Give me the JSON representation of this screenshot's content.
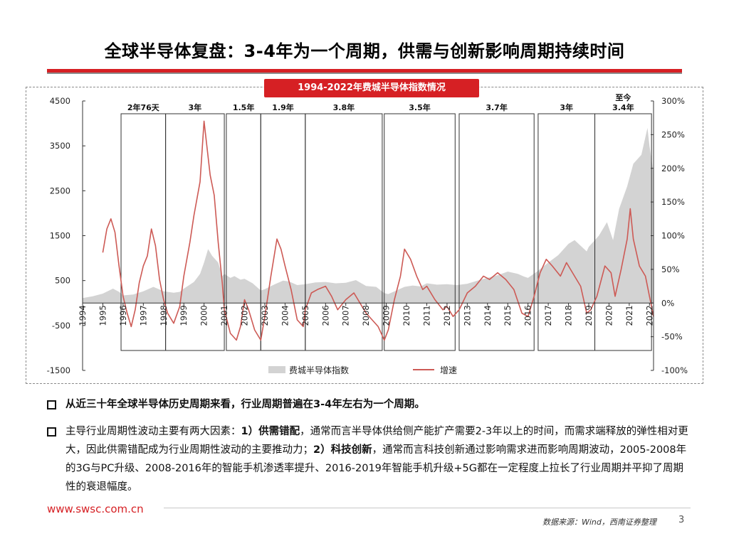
{
  "title": "全球半导体复盘：3-4年为一个周期，供需与创新影响周期持续时间",
  "colors": {
    "accent": "#d62024",
    "area": "#d3d3d3",
    "line": "#cd5a55",
    "box": "#333333"
  },
  "chart_data": {
    "type": "area-line",
    "title": "1994-2022年费城半导体指数情况",
    "x_range": [
      1994.0,
      2022.2
    ],
    "y_left": {
      "ticks": [
        4500,
        3500,
        2500,
        1500,
        500,
        -500,
        -1500
      ],
      "range": [
        -1500,
        4500
      ]
    },
    "y_right": {
      "ticks": [
        "300%",
        "250%",
        "200%",
        "150%",
        "100%",
        "50%",
        "0%",
        "-50%",
        "-100%"
      ],
      "range": [
        -100,
        300
      ]
    },
    "x_ticks": [
      "1994",
      "1995",
      "1996",
      "1997",
      "1998",
      "1999",
      "2000",
      "2001",
      "2002",
      "2003",
      "2004",
      "2005",
      "2006",
      "2007",
      "2008",
      "2009",
      "2010",
      "2011",
      "2012",
      "2013",
      "2014",
      "2015",
      "2016",
      "2017",
      "2018",
      "2019",
      "2020",
      "2021",
      "2022"
    ],
    "cycles": [
      {
        "label": "2年76天",
        "start": 1995.9,
        "end": 1998.1
      },
      {
        "label": "3年",
        "start": 1998.1,
        "end": 2001.0
      },
      {
        "label": "1.5年",
        "start": 2001.1,
        "end": 2002.8
      },
      {
        "label": "1.9年",
        "start": 2002.8,
        "end": 2005.0
      },
      {
        "label": "3.8年",
        "start": 2005.0,
        "end": 2008.8
      },
      {
        "label": "3.5年",
        "start": 2008.9,
        "end": 2012.4
      },
      {
        "label": "3.7年",
        "start": 2012.6,
        "end": 2016.3
      },
      {
        "label": "3年",
        "start": 2016.5,
        "end": 2019.3
      },
      {
        "label_top": "至今",
        "label": "3.4年",
        "start": 2019.3,
        "end": 2022.1
      }
    ],
    "series": [
      {
        "name": "费城半导体指数",
        "type": "area",
        "axis": "left",
        "points": [
          [
            1994.0,
            110
          ],
          [
            1994.5,
            150
          ],
          [
            1995.0,
            210
          ],
          [
            1995.5,
            320
          ],
          [
            1995.8,
            250
          ],
          [
            1996.0,
            170
          ],
          [
            1996.5,
            190
          ],
          [
            1997.0,
            260
          ],
          [
            1997.5,
            360
          ],
          [
            1997.8,
            300
          ],
          [
            1998.0,
            260
          ],
          [
            1998.5,
            230
          ],
          [
            1998.8,
            250
          ],
          [
            1999.0,
            320
          ],
          [
            1999.5,
            470
          ],
          [
            1999.8,
            650
          ],
          [
            2000.0,
            900
          ],
          [
            2000.2,
            1200
          ],
          [
            2000.4,
            1050
          ],
          [
            2000.7,
            900
          ],
          [
            2000.9,
            600
          ],
          [
            2001.0,
            650
          ],
          [
            2001.3,
            560
          ],
          [
            2001.5,
            600
          ],
          [
            2001.8,
            520
          ],
          [
            2002.0,
            540
          ],
          [
            2002.4,
            440
          ],
          [
            2002.8,
            280
          ],
          [
            2003.0,
            310
          ],
          [
            2003.5,
            420
          ],
          [
            2003.9,
            500
          ],
          [
            2004.2,
            480
          ],
          [
            2004.6,
            400
          ],
          [
            2005.0,
            420
          ],
          [
            2005.5,
            460
          ],
          [
            2006.0,
            470
          ],
          [
            2006.5,
            440
          ],
          [
            2007.0,
            450
          ],
          [
            2007.5,
            510
          ],
          [
            2008.0,
            380
          ],
          [
            2008.5,
            360
          ],
          [
            2008.9,
            220
          ],
          [
            2009.1,
            200
          ],
          [
            2009.5,
            280
          ],
          [
            2009.9,
            360
          ],
          [
            2010.3,
            390
          ],
          [
            2010.7,
            370
          ],
          [
            2011.0,
            440
          ],
          [
            2011.5,
            410
          ],
          [
            2012.0,
            420
          ],
          [
            2012.5,
            400
          ],
          [
            2013.0,
            430
          ],
          [
            2013.5,
            500
          ],
          [
            2014.0,
            560
          ],
          [
            2014.5,
            620
          ],
          [
            2015.0,
            700
          ],
          [
            2015.5,
            650
          ],
          [
            2015.8,
            590
          ],
          [
            2016.0,
            560
          ],
          [
            2016.5,
            720
          ],
          [
            2017.0,
            900
          ],
          [
            2017.5,
            1070
          ],
          [
            2018.0,
            1320
          ],
          [
            2018.3,
            1400
          ],
          [
            2018.9,
            1150
          ],
          [
            2019.0,
            1250
          ],
          [
            2019.5,
            1500
          ],
          [
            2019.9,
            1800
          ],
          [
            2020.2,
            1400
          ],
          [
            2020.5,
            2100
          ],
          [
            2020.9,
            2600
          ],
          [
            2021.2,
            3100
          ],
          [
            2021.6,
            3300
          ],
          [
            2021.9,
            3900
          ],
          [
            2022.0,
            3500
          ],
          [
            2022.2,
            2900
          ]
        ]
      },
      {
        "name": "增速",
        "type": "line",
        "axis": "right",
        "points": [
          [
            1995.0,
            75
          ],
          [
            1995.2,
            110
          ],
          [
            1995.4,
            125
          ],
          [
            1995.6,
            105
          ],
          [
            1995.8,
            55
          ],
          [
            1996.0,
            10
          ],
          [
            1996.2,
            -15
          ],
          [
            1996.4,
            -35
          ],
          [
            1996.6,
            -10
          ],
          [
            1996.8,
            30
          ],
          [
            1997.0,
            55
          ],
          [
            1997.2,
            70
          ],
          [
            1997.4,
            110
          ],
          [
            1997.6,
            85
          ],
          [
            1997.8,
            35
          ],
          [
            1998.0,
            5
          ],
          [
            1998.2,
            -15
          ],
          [
            1998.5,
            -30
          ],
          [
            1998.8,
            -5
          ],
          [
            1999.0,
            40
          ],
          [
            1999.3,
            90
          ],
          [
            1999.5,
            130
          ],
          [
            1999.8,
            180
          ],
          [
            2000.0,
            270
          ],
          [
            2000.15,
            230
          ],
          [
            2000.3,
            190
          ],
          [
            2000.5,
            160
          ],
          [
            2000.7,
            90
          ],
          [
            2000.9,
            30
          ],
          [
            2001.0,
            -10
          ],
          [
            2001.3,
            -45
          ],
          [
            2001.6,
            -55
          ],
          [
            2001.8,
            -35
          ],
          [
            2002.0,
            5
          ],
          [
            2002.2,
            -10
          ],
          [
            2002.5,
            -40
          ],
          [
            2002.8,
            -55
          ],
          [
            2003.0,
            -20
          ],
          [
            2003.3,
            40
          ],
          [
            2003.6,
            95
          ],
          [
            2003.8,
            80
          ],
          [
            2004.0,
            55
          ],
          [
            2004.3,
            20
          ],
          [
            2004.6,
            -25
          ],
          [
            2004.9,
            -35
          ],
          [
            2005.0,
            -10
          ],
          [
            2005.3,
            15
          ],
          [
            2005.6,
            20
          ],
          [
            2006.0,
            25
          ],
          [
            2006.3,
            10
          ],
          [
            2006.6,
            -10
          ],
          [
            2007.0,
            5
          ],
          [
            2007.4,
            15
          ],
          [
            2007.8,
            -5
          ],
          [
            2008.0,
            -15
          ],
          [
            2008.3,
            -25
          ],
          [
            2008.6,
            -35
          ],
          [
            2008.9,
            -55
          ],
          [
            2009.1,
            -40
          ],
          [
            2009.4,
            5
          ],
          [
            2009.7,
            40
          ],
          [
            2009.9,
            80
          ],
          [
            2010.2,
            65
          ],
          [
            2010.5,
            40
          ],
          [
            2010.8,
            20
          ],
          [
            2011.0,
            25
          ],
          [
            2011.4,
            5
          ],
          [
            2011.8,
            -10
          ],
          [
            2012.0,
            -5
          ],
          [
            2012.3,
            -20
          ],
          [
            2012.6,
            -10
          ],
          [
            2013.0,
            15
          ],
          [
            2013.4,
            25
          ],
          [
            2013.8,
            40
          ],
          [
            2014.1,
            35
          ],
          [
            2014.5,
            45
          ],
          [
            2014.9,
            35
          ],
          [
            2015.3,
            20
          ],
          [
            2015.7,
            -15
          ],
          [
            2016.0,
            -20
          ],
          [
            2016.3,
            10
          ],
          [
            2016.6,
            45
          ],
          [
            2016.9,
            65
          ],
          [
            2017.2,
            55
          ],
          [
            2017.6,
            40
          ],
          [
            2017.9,
            60
          ],
          [
            2018.2,
            45
          ],
          [
            2018.6,
            25
          ],
          [
            2018.9,
            -15
          ],
          [
            2019.1,
            -10
          ],
          [
            2019.4,
            10
          ],
          [
            2019.8,
            55
          ],
          [
            2020.1,
            45
          ],
          [
            2020.3,
            10
          ],
          [
            2020.6,
            50
          ],
          [
            2020.9,
            95
          ],
          [
            2021.05,
            140
          ],
          [
            2021.2,
            95
          ],
          [
            2021.5,
            55
          ],
          [
            2021.8,
            40
          ],
          [
            2022.0,
            10
          ],
          [
            2022.2,
            -20
          ]
        ]
      }
    ],
    "legend": [
      "费城半导体指数",
      "增速"
    ]
  },
  "bullets": [
    {
      "segments": [
        {
          "t": "从近三十年全球半导体历史周期来看，行业周期普遍在3-4年左右为一个周期。",
          "b": true
        }
      ]
    },
    {
      "segments": [
        {
          "t": "主导行业周期性波动主要有两大因素：",
          "b": false
        },
        {
          "t": "1）供需错配",
          "b": true
        },
        {
          "t": "，通常而言半导体供给侧产能扩产需要2-3年以上的时间，而需求端释放的弹性相对更大，因此供需错配成为行业周期性波动的主要推动力；",
          "b": false
        },
        {
          "t": "2）科技创新",
          "b": true
        },
        {
          "t": "，通常而言科技创新通过影响需求进而影响周期波动，2005-2008年的3G与PC升级、2008-2016年的智能手机渗透率提升、2016-2019年智能手机升级+5G都在一定程度上拉长了行业周期并平抑了周期性的衰退幅度。",
          "b": false
        }
      ]
    }
  ],
  "footer": {
    "url": "www.swsc.com.cn",
    "source": "数据来源：Wind，西南证券整理",
    "page": "3"
  }
}
